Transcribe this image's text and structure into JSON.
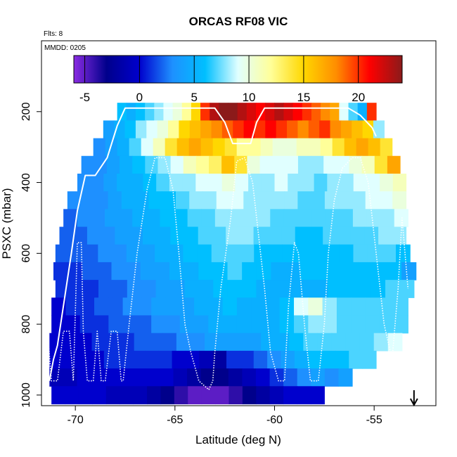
{
  "chart_data": {
    "type": "heatmap",
    "title": "ORCAS RF08 VIC",
    "annotations": {
      "flights": "Flts: 8",
      "date": "MMDD: 0205"
    },
    "xlabel": "Latitude (deg N)",
    "ylabel": "PSXC (mbar)",
    "xlim": [
      -71.7,
      -51.9
    ],
    "ylim": [
      1030,
      0
    ],
    "x_ticks": [
      -70,
      -65,
      -60,
      -55
    ],
    "x_tick_labels": [
      "-70",
      "-65",
      "-60",
      "-55"
    ],
    "y_ticks": [
      200,
      400,
      600,
      800,
      1000
    ],
    "y_tick_labels": [
      "200",
      "400",
      "600",
      "800",
      "1000"
    ],
    "colorbar": {
      "min": -6,
      "max": 24,
      "ticks": [
        -5,
        0,
        5,
        10,
        15,
        20
      ],
      "tick_labels": [
        "-5",
        "0",
        "5",
        "10",
        "15",
        "20"
      ],
      "stops": [
        "#8a2be2",
        "#00008b",
        "#0000cd",
        "#1e90ff",
        "#00bfff",
        "#e0ffff",
        "#ffff99",
        "#ffd700",
        "#ff8c00",
        "#ff0000",
        "#8b1a1a"
      ]
    },
    "rows": [
      {
        "p": 200,
        "x0": -67.9,
        "x1": -54.9,
        "vals": [
          6,
          5,
          6,
          7,
          8,
          9,
          10,
          12,
          15,
          20,
          23,
          24,
          24,
          23,
          22,
          21,
          22,
          23,
          22,
          21,
          20,
          19,
          18,
          17,
          9,
          7,
          5,
          20
        ]
      },
      {
        "p": 250,
        "x0": -68.6,
        "x1": -54.5,
        "vals": [
          4,
          5,
          6,
          8,
          9,
          10,
          12,
          15,
          16,
          17,
          18,
          19,
          20,
          21,
          20,
          21,
          20,
          19,
          18,
          19,
          20,
          18,
          17,
          16,
          15,
          8
        ]
      },
      {
        "p": 300,
        "x0": -69.1,
        "x1": -54.1,
        "vals": [
          3,
          4,
          5,
          7,
          9,
          11,
          14,
          16,
          17,
          16,
          15,
          14,
          12,
          12,
          11,
          10,
          10,
          11,
          11,
          12,
          14,
          16,
          17,
          16,
          14
        ]
      },
      {
        "p": 350,
        "x0": -69.7,
        "x1": -53.7,
        "vals": [
          3,
          3,
          4,
          5,
          6,
          7,
          8,
          9,
          11,
          12,
          13,
          16,
          14,
          10,
          9,
          9,
          9,
          8,
          8,
          9,
          9,
          10,
          11,
          14,
          17
        ]
      },
      {
        "p": 400,
        "x0": -69.9,
        "x1": -53.4,
        "vals": [
          3,
          3,
          4,
          5,
          5,
          6,
          7,
          8,
          8,
          9,
          9,
          10,
          9,
          8,
          8,
          9,
          8,
          8,
          7,
          8,
          8,
          9,
          9,
          10,
          11
        ]
      },
      {
        "p": 450,
        "x0": -70.4,
        "x1": -53.4,
        "vals": [
          3,
          3,
          3,
          4,
          5,
          5,
          6,
          6,
          7,
          8,
          8,
          9,
          9,
          8,
          8,
          8,
          8,
          7,
          7,
          8,
          8,
          8,
          9,
          9,
          10
        ]
      },
      {
        "p": 500,
        "x0": -70.6,
        "x1": -53.3,
        "vals": [
          2,
          3,
          3,
          4,
          4,
          5,
          5,
          6,
          6,
          7,
          7,
          8,
          8,
          8,
          8,
          7,
          7,
          7,
          7,
          7,
          7,
          8,
          8,
          8,
          9
        ]
      },
      {
        "p": 550,
        "x0": -70.8,
        "x1": -53.4,
        "vals": [
          2,
          2,
          3,
          3,
          4,
          4,
          5,
          5,
          6,
          6,
          7,
          7,
          8,
          8,
          7,
          7,
          7,
          6,
          6,
          7,
          7,
          7,
          7,
          8,
          8
        ]
      },
      {
        "p": 600,
        "x0": -71.0,
        "x1": -53.2,
        "vals": [
          2,
          2,
          2,
          3,
          3,
          4,
          4,
          5,
          5,
          6,
          6,
          7,
          7,
          7,
          6,
          6,
          6,
          6,
          6,
          6,
          6,
          7,
          7,
          7,
          6
        ]
      },
      {
        "p": 650,
        "x0": -71.1,
        "x1": -52.9,
        "vals": [
          1,
          1,
          2,
          2,
          3,
          3,
          4,
          4,
          5,
          5,
          6,
          6,
          7,
          6,
          6,
          5,
          5,
          6,
          6,
          6,
          6,
          6,
          6,
          6,
          4
        ]
      },
      {
        "p": 700,
        "x0": -71.0,
        "x1": -53.0,
        "vals": [
          1,
          1,
          1,
          2,
          2,
          3,
          3,
          4,
          4,
          5,
          5,
          6,
          6,
          6,
          5,
          5,
          5,
          5,
          5,
          6,
          6,
          6,
          6,
          7,
          7
        ]
      },
      {
        "p": 750,
        "x0": -71.2,
        "x1": -53.3,
        "vals": [
          0,
          1,
          1,
          2,
          2,
          3,
          3,
          4,
          4,
          4,
          5,
          5,
          6,
          5,
          5,
          5,
          6,
          9,
          10,
          8,
          7,
          7,
          7,
          7,
          7
        ]
      },
      {
        "p": 800,
        "x0": -71.2,
        "x1": -53.3,
        "vals": [
          0,
          0,
          1,
          1,
          2,
          2,
          2,
          3,
          3,
          4,
          4,
          5,
          5,
          5,
          5,
          5,
          6,
          7,
          8,
          8,
          7,
          7,
          7,
          7,
          7
        ]
      },
      {
        "p": 850,
        "x0": -71.3,
        "x1": -53.6,
        "vals": [
          0,
          0,
          0,
          1,
          1,
          1,
          2,
          2,
          2,
          3,
          3,
          4,
          4,
          4,
          4,
          5,
          5,
          6,
          7,
          7,
          7,
          7,
          7,
          8,
          9
        ]
      },
      {
        "p": 900,
        "x0": -71.3,
        "x1": -54.9,
        "vals": [
          0,
          0,
          0,
          0,
          1,
          1,
          1,
          1,
          1,
          0,
          0,
          -1,
          -2,
          1,
          1,
          2,
          3,
          4,
          5,
          6,
          6,
          6,
          7,
          7
        ]
      },
      {
        "p": 950,
        "x0": -71.3,
        "x1": -56.1,
        "vals": [
          -1,
          -1,
          0,
          0,
          0,
          0,
          0,
          0,
          0,
          -1,
          -2,
          -3,
          -3,
          -2,
          -1,
          0,
          1,
          2,
          3,
          4,
          3,
          4
        ]
      },
      {
        "p": 1000,
        "x0": -71.2,
        "x1": -57.5,
        "vals": [
          0,
          0,
          0,
          0,
          -1,
          -1,
          -1,
          -2,
          -3,
          -4,
          -5,
          -5,
          -5,
          -4,
          -3,
          -2,
          -1,
          0,
          0,
          0
        ]
      }
    ],
    "series": [
      {
        "line": "solid",
        "x": [
          -71.3,
          -71.1,
          -70.9,
          -70.2,
          -69.9,
          -69.5,
          -69.0,
          -68.4,
          -67.9,
          -67.5,
          -66.5,
          -65.0,
          -63.9,
          -63.0,
          -62.5,
          -62.1,
          -61.6,
          -61.2,
          -60.9,
          -60.5,
          -59.8,
          -58.8,
          -57.5,
          -56.3,
          -55.7,
          -55.1,
          -54.9
        ],
        "y": [
          960,
          900,
          860,
          600,
          480,
          380,
          380,
          330,
          240,
          190,
          190,
          190,
          190,
          190,
          230,
          290,
          290,
          290,
          230,
          190,
          190,
          190,
          190,
          190,
          210,
          245,
          270
        ]
      },
      {
        "line": "dotted",
        "x": [
          -71.4,
          -71.2,
          -70.9,
          -70.6,
          -70.3,
          -70.1,
          -69.9,
          -69.7,
          -69.6,
          -69.4,
          -69.1,
          -68.9,
          -68.7,
          -68.5,
          -68.2,
          -67.9,
          -67.7,
          -67.6,
          -67.3,
          -66.9,
          -66.4,
          -66.0,
          -65.5,
          -65.1,
          -64.8,
          -64.5,
          -64.2,
          -63.8,
          -63.5,
          -63.3,
          -63.1,
          -63.0,
          -62.7,
          -62.2,
          -61.9,
          -61.5,
          -61.1,
          -60.8,
          -60.5,
          -60.2,
          -59.8,
          -59.5,
          -59.3,
          -59.0,
          -58.8,
          -58.5,
          -58.2,
          -57.8,
          -57.5,
          -57.3,
          -57.0,
          -56.6,
          -56.1,
          -55.7,
          -55.3,
          -54.9,
          -54.5,
          -54.1,
          -53.8,
          -53.6,
          -53.3
        ],
        "y": [
          820,
          960,
          960,
          820,
          820,
          960,
          570,
          570,
          820,
          960,
          960,
          820,
          960,
          960,
          820,
          820,
          960,
          960,
          800,
          600,
          420,
          330,
          330,
          420,
          600,
          800,
          880,
          960,
          975,
          985,
          960,
          880,
          700,
          500,
          340,
          330,
          400,
          550,
          700,
          880,
          960,
          960,
          750,
          570,
          600,
          800,
          960,
          960,
          800,
          600,
          450,
          360,
          330,
          330,
          400,
          600,
          800,
          900,
          700,
          500,
          700
        ]
      }
    ],
    "arrow": {
      "x": -53.0,
      "direction": "down"
    }
  }
}
